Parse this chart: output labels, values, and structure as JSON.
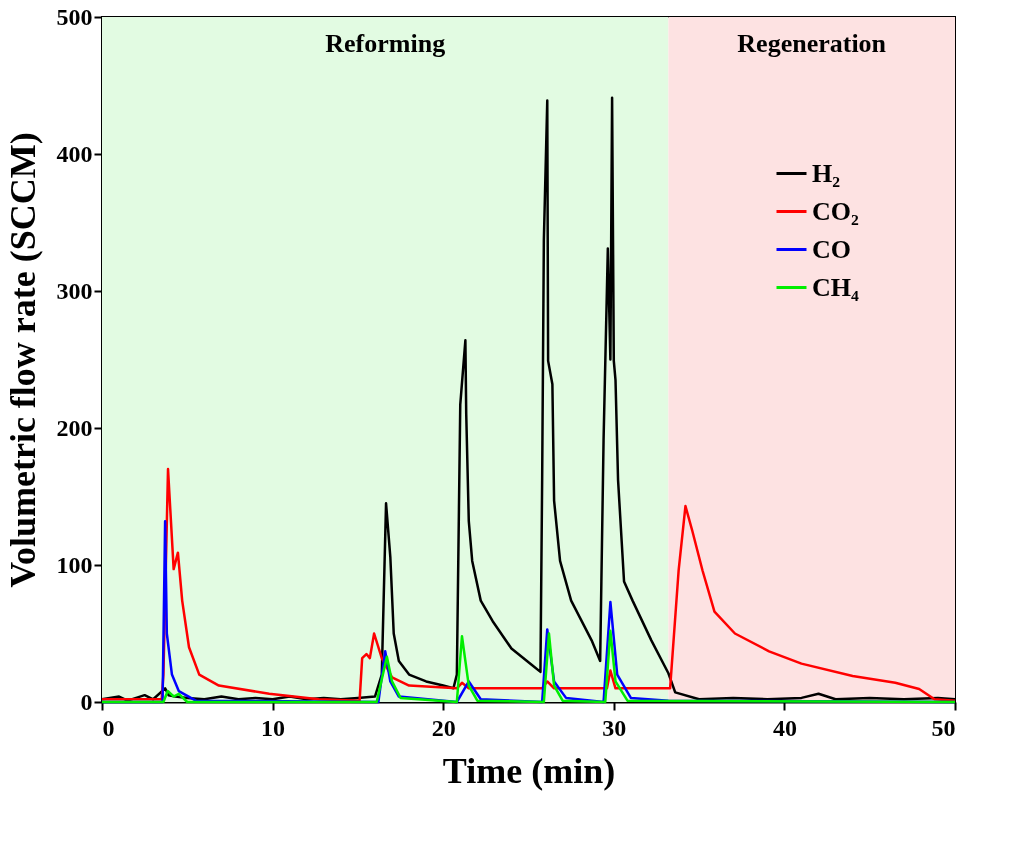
{
  "chart_data": {
    "type": "line",
    "xlabel": "Time (min)",
    "ylabel": "Volumetric flow rate (SCCM)",
    "xlim": [
      0,
      50
    ],
    "ylim": [
      0,
      500
    ],
    "xticks": [
      0,
      10,
      20,
      30,
      40,
      50
    ],
    "yticks": [
      0,
      100,
      200,
      300,
      400,
      500
    ],
    "grid": false,
    "legend": "top right",
    "marker": "none",
    "line_style": "solid",
    "bands": [
      {
        "axis": "x",
        "from": 0,
        "to": 33.2,
        "label": "Reforming",
        "color": "#e2fbe2"
      },
      {
        "axis": "x",
        "from": 33.2,
        "to": 50,
        "label": "Regeneration",
        "color": "#fde2e2"
      }
    ],
    "series": [
      {
        "name": "H₂",
        "color": "#000000",
        "x": [
          0,
          1,
          1.5,
          2.5,
          3,
          3.7,
          3.9,
          4.3,
          5,
          6,
          7,
          8,
          9,
          10,
          11,
          12,
          13,
          14,
          15,
          16,
          16.4,
          16.65,
          16.9,
          17.1,
          17.4,
          18,
          19,
          20,
          20.6,
          20.8,
          21.0,
          21.3,
          21.35,
          21.5,
          21.7,
          22.2,
          22.9,
          24.0,
          25.2,
          25.7,
          25.8,
          25.9,
          26.1,
          26.15,
          26.4,
          26.5,
          26.85,
          27.5,
          28.7,
          29.2,
          29.4,
          29.65,
          29.8,
          29.9,
          30.0,
          30.1,
          30.25,
          30.6,
          31.1,
          32.2,
          33.2,
          33.6,
          35,
          37,
          39,
          41,
          42,
          43,
          45,
          47,
          49,
          50
        ],
        "values": [
          2,
          4,
          1,
          5,
          2,
          10,
          5,
          4,
          3,
          2,
          4,
          2,
          3,
          2,
          4,
          2,
          3,
          2,
          3,
          4,
          20,
          145,
          106,
          50,
          30,
          20,
          15,
          12,
          10,
          20,
          217,
          264,
          210,
          132,
          103,
          74,
          59,
          39,
          27,
          22,
          162,
          337,
          439,
          249,
          232,
          147,
          103,
          74,
          45,
          30,
          191,
          331,
          250,
          441,
          249,
          235,
          162,
          88,
          74,
          45,
          21,
          7,
          2,
          3,
          2,
          3,
          6,
          2,
          3,
          2,
          3,
          2
        ]
      },
      {
        "name": "CO₂",
        "color": "#ff0000",
        "x": [
          0,
          3.5,
          3.6,
          3.87,
          4.2,
          4.45,
          4.7,
          5.1,
          5.7,
          6.85,
          9.8,
          12.7,
          15.1,
          15.25,
          15.5,
          15.7,
          15.95,
          16.4,
          17.0,
          18,
          20.8,
          21.1,
          21.5,
          25.8,
          26.1,
          26.5,
          29.6,
          29.8,
          30.1,
          33.2,
          33.3,
          33.8,
          34.2,
          34.6,
          35.2,
          35.9,
          37.1,
          39.1,
          41.0,
          44.0,
          46.5,
          47.9,
          48.8,
          50
        ],
        "values": [
          2,
          2,
          20,
          170,
          97,
          109,
          74,
          40,
          20,
          12,
          6,
          2,
          1,
          32,
          35,
          32,
          50,
          32,
          18,
          12,
          10,
          14,
          10,
          10,
          15,
          10,
          10,
          23,
          10,
          10,
          10,
          96,
          143,
          125,
          96,
          66,
          50,
          37,
          28,
          19,
          14,
          9.5,
          2,
          1
        ]
      },
      {
        "name": "CO",
        "color": "#0000ff",
        "x": [
          0,
          3.55,
          3.7,
          3.8,
          4.1,
          4.5,
          5.5,
          16.2,
          16.6,
          16.9,
          17.4,
          20.8,
          21.1,
          21.5,
          22.2,
          25.8,
          26.1,
          26.5,
          27.2,
          29.4,
          29.8,
          30.2,
          31,
          33.2,
          50
        ],
        "values": [
          0,
          0,
          132,
          50,
          20,
          8,
          1,
          0,
          37,
          15,
          4,
          0,
          null,
          15,
          2,
          0,
          53,
          15,
          3,
          0,
          73,
          20,
          3,
          1,
          0
        ]
      },
      {
        "name": "CH₄",
        "color": "#00ee00",
        "x": [
          0,
          3.6,
          3.85,
          4.2,
          4.5,
          5,
          16.1,
          16.7,
          17.0,
          17.5,
          20.8,
          21.1,
          21.5,
          22.0,
          25.9,
          26.2,
          26.5,
          27,
          29.5,
          29.8,
          30.1,
          30.8,
          50
        ],
        "values": [
          0,
          0,
          8,
          4,
          6,
          0,
          0,
          33,
          15,
          3,
          0,
          48,
          12,
          1,
          0,
          50,
          12,
          1,
          0,
          52,
          15,
          1,
          0
        ]
      }
    ]
  }
}
